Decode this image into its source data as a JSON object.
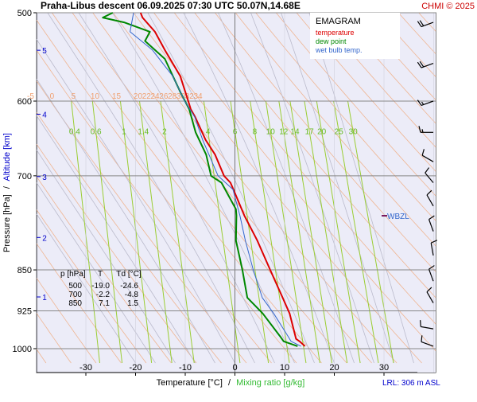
{
  "header": {
    "title": "Praha-Libus   descent   06.09.2025 07:30 UTC   50.07N,14.68E",
    "credit": "CHMI © 2025"
  },
  "legend": {
    "title": "EMAGRAM",
    "items": [
      {
        "label": "temperature",
        "color": "#dd0000"
      },
      {
        "label": "dew point",
        "color": "#008800"
      },
      {
        "label": "wet bulb temp.",
        "color": "#3366cc"
      }
    ]
  },
  "axes": {
    "y_label_pressure": "Pressure [hPa]",
    "y_label_sep": "/",
    "y_label_altitude": "Altitude [km]",
    "x_label_temp": "Temperature [°C]",
    "x_label_sep": "/",
    "x_label_mix": "Mixing ratio [g/kg]",
    "lrl": "LRL: 306 m ASL",
    "wbzl": "WBZL"
  },
  "pressure_ticks": [
    "500",
    "600",
    "700",
    "850",
    "925",
    "1000"
  ],
  "altitude_ticks": [
    "5",
    "4",
    "3",
    "2",
    "1"
  ],
  "temp_ticks": [
    "-30",
    "-20",
    "-10",
    "0",
    "10",
    "20",
    "30"
  ],
  "theta_labels": [
    "-5",
    "0",
    "5",
    "10",
    "15",
    "20",
    "22",
    "24",
    "26",
    "28",
    "30",
    "32",
    "34"
  ],
  "mix_labels": [
    "0.4",
    "0.6",
    "1",
    "1.4",
    "2",
    "4",
    "6",
    "8",
    "10",
    "12",
    "14",
    "17",
    "20",
    "25",
    "30"
  ],
  "table": {
    "headers": [
      "p [hPa]",
      "T",
      "Td [°C]"
    ],
    "rows": [
      [
        "500",
        "-19.0",
        "-24.6"
      ],
      [
        "700",
        "-2.2",
        "-4.8"
      ],
      [
        "850",
        "7.1",
        "1.5"
      ]
    ]
  },
  "chart_data": {
    "type": "line",
    "y_scale": "log-pressure",
    "ylim": [
      1020,
      500
    ],
    "xlim": [
      -40,
      40
    ],
    "xlabel": "Temperature [°C]",
    "ylabel": "Pressure [hPa]",
    "series": [
      {
        "name": "temperature",
        "color": "#dd0000",
        "x": [
          14.1,
          13.0,
          12.3,
          11.0,
          9.6,
          7.1,
          4.5,
          1.9,
          -0.3,
          -0.9,
          -2.2,
          -4.0,
          -5.9,
          -8.0,
          -8.9,
          -9.4,
          -11.0,
          -14.1,
          -16.1,
          -18.6,
          -19.0
        ],
        "y": [
          995,
          985,
          980,
          930,
          900,
          850,
          800,
          760,
          720,
          710,
          700,
          670,
          650,
          620,
          610,
          600,
          570,
          540,
          520,
          505,
          500
        ]
      },
      {
        "name": "dew point",
        "color": "#008800",
        "x": [
          12.6,
          9.8,
          9.1,
          5.6,
          2.5,
          1.5,
          0.2,
          0.3,
          0.2,
          -2.7,
          -4.8,
          -5.8,
          -7.9,
          -9.2,
          -10.9,
          -14.1,
          -18.1,
          -17.1,
          -22.3,
          -26.6,
          -24.6
        ],
        "y": [
          995,
          985,
          975,
          930,
          900,
          850,
          800,
          760,
          750,
          710,
          700,
          670,
          640,
          610,
          590,
          550,
          530,
          520,
          510,
          505,
          500
        ]
      },
      {
        "name": "wet bulb temp.",
        "color": "#3366cc",
        "x": [
          13.3,
          11.3,
          10.7,
          7.8,
          5.5,
          3.7,
          2.1,
          1.0,
          -0.4,
          -3.4,
          -6.5,
          -8.1,
          -10.1,
          -12.5,
          -16.6,
          -21.1,
          -20.4
        ],
        "y": [
          995,
          985,
          975,
          930,
          900,
          850,
          800,
          760,
          720,
          700,
          650,
          620,
          600,
          570,
          540,
          520,
          500
        ]
      }
    ],
    "winds": [
      {
        "p": 510,
        "dir": 250,
        "kt": 20
      },
      {
        "p": 555,
        "dir": 250,
        "kt": 20
      },
      {
        "p": 600,
        "dir": 250,
        "kt": 15
      },
      {
        "p": 640,
        "dir": 270,
        "kt": 15
      },
      {
        "p": 680,
        "dir": 300,
        "kt": 10
      },
      {
        "p": 710,
        "dir": 320,
        "kt": 10
      },
      {
        "p": 745,
        "dir": 330,
        "kt": 10
      },
      {
        "p": 785,
        "dir": 340,
        "kt": 10
      },
      {
        "p": 825,
        "dir": 350,
        "kt": 10
      },
      {
        "p": 870,
        "dir": 340,
        "kt": 10
      },
      {
        "p": 910,
        "dir": 330,
        "kt": 10
      },
      {
        "p": 960,
        "dir": 280,
        "kt": 10
      },
      {
        "p": 995,
        "dir": 290,
        "kt": 10
      }
    ]
  }
}
